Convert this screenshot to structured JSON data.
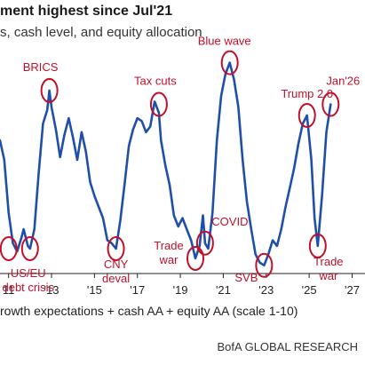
{
  "header": {
    "title": "ment highest since Jul'21",
    "subtitle": "s, cash level, and equity allocation"
  },
  "footer": {
    "caption": "rowth expectations + cash AA + equity AA (scale 1-10)",
    "source": "BofA GLOBAL RESEARCH"
  },
  "colors": {
    "line": "#1f4fa8",
    "annotation": "#c0102a",
    "text": "#222222"
  },
  "chart_data": {
    "type": "line",
    "title": "ment highest since Jul'21",
    "subtitle": "s, cash level, and equity allocation",
    "xlabel": "rowth expectations + cash AA + equity AA (scale 1-10)",
    "xlim": [
      2010.6,
      2027.6
    ],
    "ylim": [
      0.5,
      8.5
    ],
    "x_ticks": [
      2011,
      2013,
      2015,
      2017,
      2019,
      2021,
      2023,
      2025,
      2027
    ],
    "x_tick_labels": [
      "11",
      "'13",
      "'15",
      "'17",
      "'19",
      "'21",
      "'23",
      "'25",
      "'27"
    ],
    "grid": false,
    "legend": "none",
    "series": [
      {
        "x": [
          2010.6,
          2010.8,
          2011.0,
          2011.2,
          2011.4,
          2011.6,
          2011.7,
          2011.9,
          2012.0,
          2012.2,
          2012.4,
          2012.6,
          2012.8,
          2012.9,
          2013.0,
          2013.2,
          2013.4,
          2013.6,
          2013.8,
          2014.0,
          2014.2,
          2014.4,
          2014.6,
          2014.8,
          2015.0,
          2015.2,
          2015.4,
          2015.6,
          2015.8,
          2016.0,
          2016.2,
          2016.4,
          2016.6,
          2016.8,
          2017.0,
          2017.2,
          2017.4,
          2017.6,
          2017.8,
          2018.0,
          2018.1,
          2018.3,
          2018.5,
          2018.7,
          2018.9,
          2019.1,
          2019.3,
          2019.5,
          2019.7,
          2019.9,
          2020.05,
          2020.15,
          2020.3,
          2020.5,
          2020.7,
          2020.9,
          2021.1,
          2021.3,
          2021.5,
          2021.7,
          2021.9,
          2022.1,
          2022.3,
          2022.5,
          2022.7,
          2022.9,
          2023.1,
          2023.3,
          2023.5,
          2023.7,
          2023.9,
          2024.1,
          2024.3,
          2024.5,
          2024.7,
          2024.9,
          2025.1,
          2025.25,
          2025.4,
          2025.6,
          2025.8,
          2026.0
        ],
        "y": [
          5.2,
          4.5,
          2.6,
          1.5,
          1.2,
          1.7,
          2.0,
          1.4,
          1.3,
          2.0,
          4.0,
          5.8,
          6.3,
          7.0,
          6.4,
          5.6,
          4.6,
          5.4,
          6.0,
          5.3,
          4.5,
          5.5,
          4.8,
          3.7,
          3.2,
          2.8,
          2.4,
          1.6,
          1.5,
          1.3,
          2.3,
          3.6,
          5.0,
          5.6,
          6.0,
          5.9,
          5.5,
          5.7,
          6.6,
          6.2,
          5.2,
          4.3,
          3.6,
          2.5,
          2.1,
          2.4,
          2.0,
          1.6,
          0.95,
          1.4,
          2.5,
          1.5,
          1.3,
          2.6,
          5.2,
          6.8,
          7.6,
          8.0,
          7.4,
          6.4,
          4.5,
          3.0,
          2.0,
          1.1,
          0.8,
          0.7,
          1.1,
          1.6,
          1.4,
          2.0,
          2.8,
          3.5,
          4.2,
          5.1,
          5.8,
          6.1,
          4.5,
          2.4,
          1.4,
          3.2,
          5.5,
          6.5
        ]
      }
    ],
    "annotations": [
      {
        "label": "US/EU",
        "x": 2011.5,
        "y": 1.3
      },
      {
        "label": "debt crisis",
        "x": 2011.5,
        "y": 1.3
      },
      {
        "label": "BRICS",
        "x": 2012.9,
        "y": 7.0
      },
      {
        "label": "CNY",
        "x": 2016.0,
        "y": 1.3
      },
      {
        "label": "deval",
        "x": 2016.0,
        "y": 1.3
      },
      {
        "label": "Tax cuts",
        "x": 2018.0,
        "y": 6.5
      },
      {
        "label": "Trade",
        "x": 2019.7,
        "y": 0.95
      },
      {
        "label": "war",
        "x": 2019.7,
        "y": 0.95
      },
      {
        "label": "COVID",
        "x": 2020.15,
        "y": 1.5
      },
      {
        "label": "Blue wave",
        "x": 2021.3,
        "y": 8.0
      },
      {
        "label": "SVB",
        "x": 2022.9,
        "y": 0.7
      },
      {
        "label": "Trump 2.0",
        "x": 2024.9,
        "y": 6.1
      },
      {
        "label": "Jan'26",
        "x": 2026.0,
        "y": 6.5
      },
      {
        "label": "Trade",
        "x": 2025.4,
        "y": 1.4
      },
      {
        "label": "war",
        "x": 2025.4,
        "y": 1.4
      }
    ]
  }
}
